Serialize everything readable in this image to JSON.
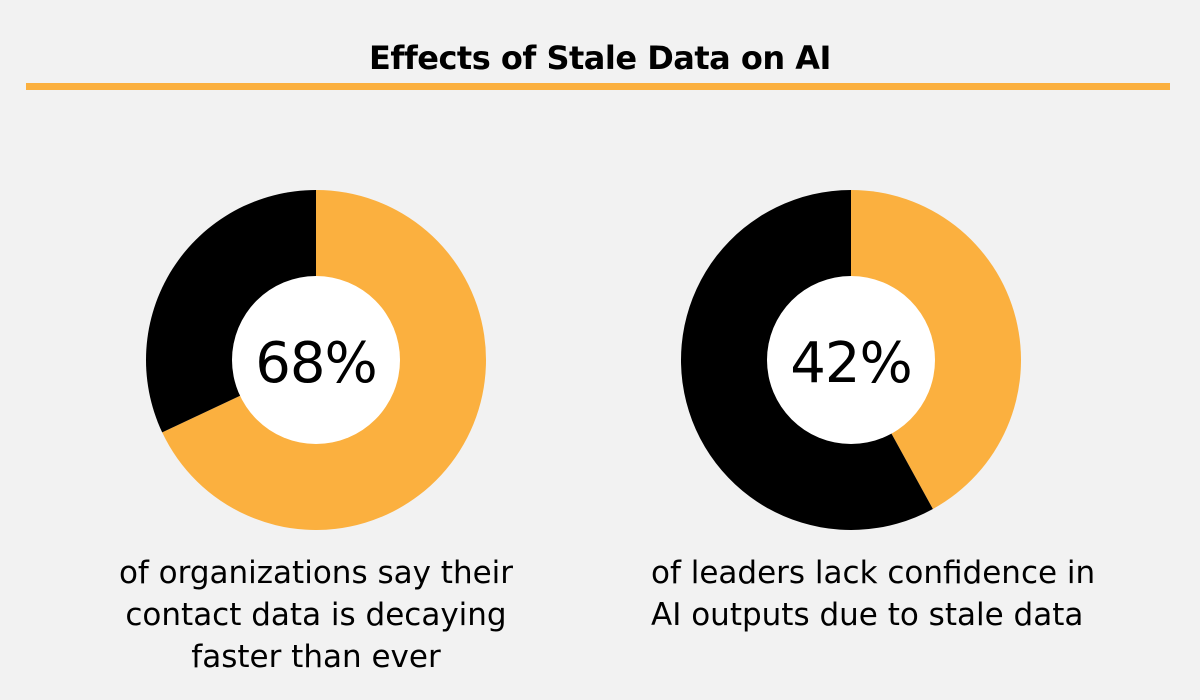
{
  "colors": {
    "background": "#f2f2f2",
    "accent": "#fbb03f",
    "dark": "#000000",
    "hole": "#ffffff"
  },
  "chart_data": [
    {
      "type": "pie",
      "title": "Effects of Stale Data on AI",
      "donut": true,
      "slices": [
        {
          "value": 68,
          "color": "#fbb03f"
        },
        {
          "value": 32,
          "color": "#000000"
        }
      ],
      "center_label": "68%",
      "caption_lines": [
        "of organizations say their",
        "contact data is decaying",
        "faster than ever"
      ]
    },
    {
      "type": "pie",
      "donut": true,
      "slices": [
        {
          "value": 42,
          "color": "#fbb03f"
        },
        {
          "value": 58,
          "color": "#000000"
        }
      ],
      "center_label": "42%",
      "caption_lines": [
        "of leaders lack confidence in",
        "AI outputs due to stale data"
      ]
    }
  ]
}
